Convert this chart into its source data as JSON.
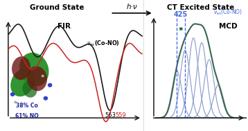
{
  "title_left": "Ground State",
  "title_right": "CT Excited State",
  "arrow_label": "h·ν",
  "fir_label": "FIR",
  "label_563": "563",
  "label_559": "559",
  "label_425": "425",
  "mcd_label": "MCD",
  "percent_co": "38% Co",
  "percent_no": "61% NO",
  "bg_color": "#ffffff",
  "line_black_color": "#1a1a1a",
  "line_red_color": "#cc2020",
  "gauss_color": "#8899cc",
  "envelope_color": "#3a6650",
  "dashed_color": "#4466dd",
  "arrow_span_color": "#116633",
  "axis_color": "#1a1a1a",
  "label_color": "#222299",
  "divider_color": "#888888"
}
